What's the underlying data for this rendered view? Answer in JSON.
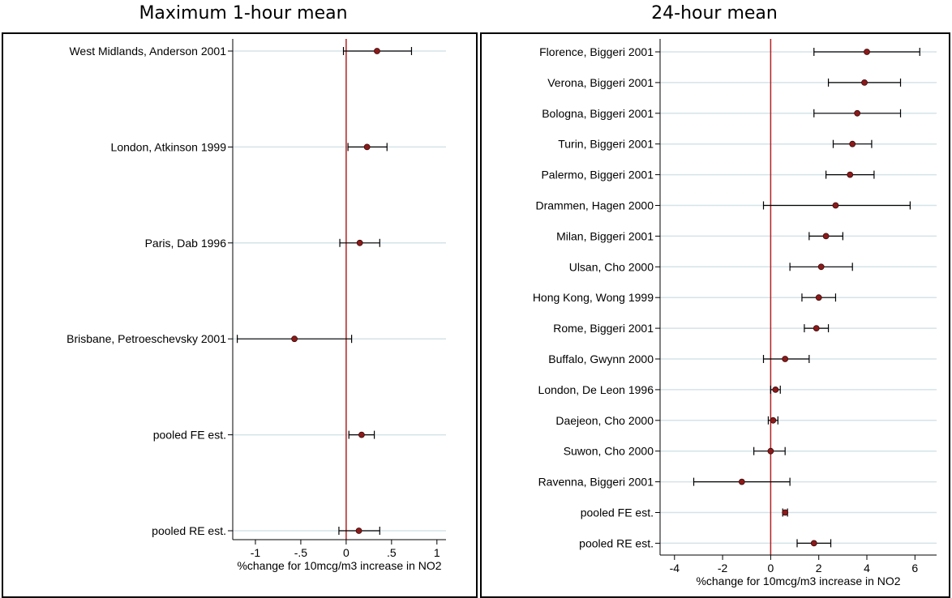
{
  "titles": {
    "left": "Maximum 1-hour mean",
    "right": "24-hour mean"
  },
  "colors": {
    "reference_line": "#b22222",
    "point": "#8b1a1a",
    "ci_line": "#000000",
    "gridline": "#d5e3e8"
  },
  "chart_data": [
    {
      "type": "scatter",
      "title": "Maximum 1-hour mean",
      "xlabel": "%change for 10mcg/m3 increase in NO2",
      "ylabel": "",
      "xlim": [
        -1.25,
        1.1
      ],
      "xticks": [
        -1,
        -0.5,
        0,
        0.5,
        1
      ],
      "xtick_labels": [
        "-1",
        "-.5",
        "0",
        ".5",
        "1"
      ],
      "reference_x": 0,
      "grid": true,
      "studies": [
        {
          "label": "West Midlands, Anderson 2001",
          "est": 0.34,
          "lo": -0.03,
          "hi": 0.72
        },
        {
          "label": "London, Atkinson 1999",
          "est": 0.23,
          "lo": 0.02,
          "hi": 0.45
        },
        {
          "label": "Paris, Dab 1996",
          "est": 0.15,
          "lo": -0.07,
          "hi": 0.37
        },
        {
          "label": "Brisbane, Petroeschevsky 2001",
          "est": -0.57,
          "lo": -1.2,
          "hi": 0.06
        },
        {
          "label": "pooled FE est.",
          "est": 0.17,
          "lo": 0.03,
          "hi": 0.31
        },
        {
          "label": "pooled RE est.",
          "est": 0.14,
          "lo": -0.08,
          "hi": 0.37
        }
      ]
    },
    {
      "type": "scatter",
      "title": "24-hour mean",
      "xlabel": "%change for 10mcg/m3 increase in NO2",
      "ylabel": "",
      "xlim": [
        -4.6,
        6.9
      ],
      "xticks": [
        -4,
        -2,
        0,
        2,
        4,
        6
      ],
      "xtick_labels": [
        "-4",
        "-2",
        "0",
        "2",
        "4",
        "6"
      ],
      "reference_x": 0,
      "grid": true,
      "studies": [
        {
          "label": "Florence, Biggeri 2001",
          "est": 4.0,
          "lo": 1.8,
          "hi": 6.2
        },
        {
          "label": "Verona, Biggeri 2001",
          "est": 3.9,
          "lo": 2.4,
          "hi": 5.4
        },
        {
          "label": "Bologna, Biggeri 2001",
          "est": 3.6,
          "lo": 1.8,
          "hi": 5.4
        },
        {
          "label": "Turin, Biggeri 2001",
          "est": 3.4,
          "lo": 2.6,
          "hi": 4.2
        },
        {
          "label": "Palermo, Biggeri 2001",
          "est": 3.3,
          "lo": 2.3,
          "hi": 4.3
        },
        {
          "label": "Drammen, Hagen 2000",
          "est": 2.7,
          "lo": -0.3,
          "hi": 5.8
        },
        {
          "label": "Milan, Biggeri 2001",
          "est": 2.3,
          "lo": 1.6,
          "hi": 3.0
        },
        {
          "label": "Ulsan, Cho 2000",
          "est": 2.1,
          "lo": 0.8,
          "hi": 3.4
        },
        {
          "label": "Hong Kong, Wong 1999",
          "est": 2.0,
          "lo": 1.3,
          "hi": 2.7
        },
        {
          "label": "Rome, Biggeri 2001",
          "est": 1.9,
          "lo": 1.4,
          "hi": 2.4
        },
        {
          "label": "Buffalo, Gwynn 2000",
          "est": 0.6,
          "lo": -0.3,
          "hi": 1.6
        },
        {
          "label": "London, De Leon 1996",
          "est": 0.2,
          "lo": 0.0,
          "hi": 0.4
        },
        {
          "label": "Daejeon, Cho 2000",
          "est": 0.1,
          "lo": -0.1,
          "hi": 0.3
        },
        {
          "label": "Suwon, Cho 2000",
          "est": 0.0,
          "lo": -0.7,
          "hi": 0.6
        },
        {
          "label": "Ravenna, Biggeri 2001",
          "est": -1.2,
          "lo": -3.2,
          "hi": 0.8
        },
        {
          "label": "pooled FE est.",
          "est": 0.6,
          "lo": 0.5,
          "hi": 0.7
        },
        {
          "label": "pooled RE est.",
          "est": 1.8,
          "lo": 1.1,
          "hi": 2.5
        }
      ]
    }
  ]
}
